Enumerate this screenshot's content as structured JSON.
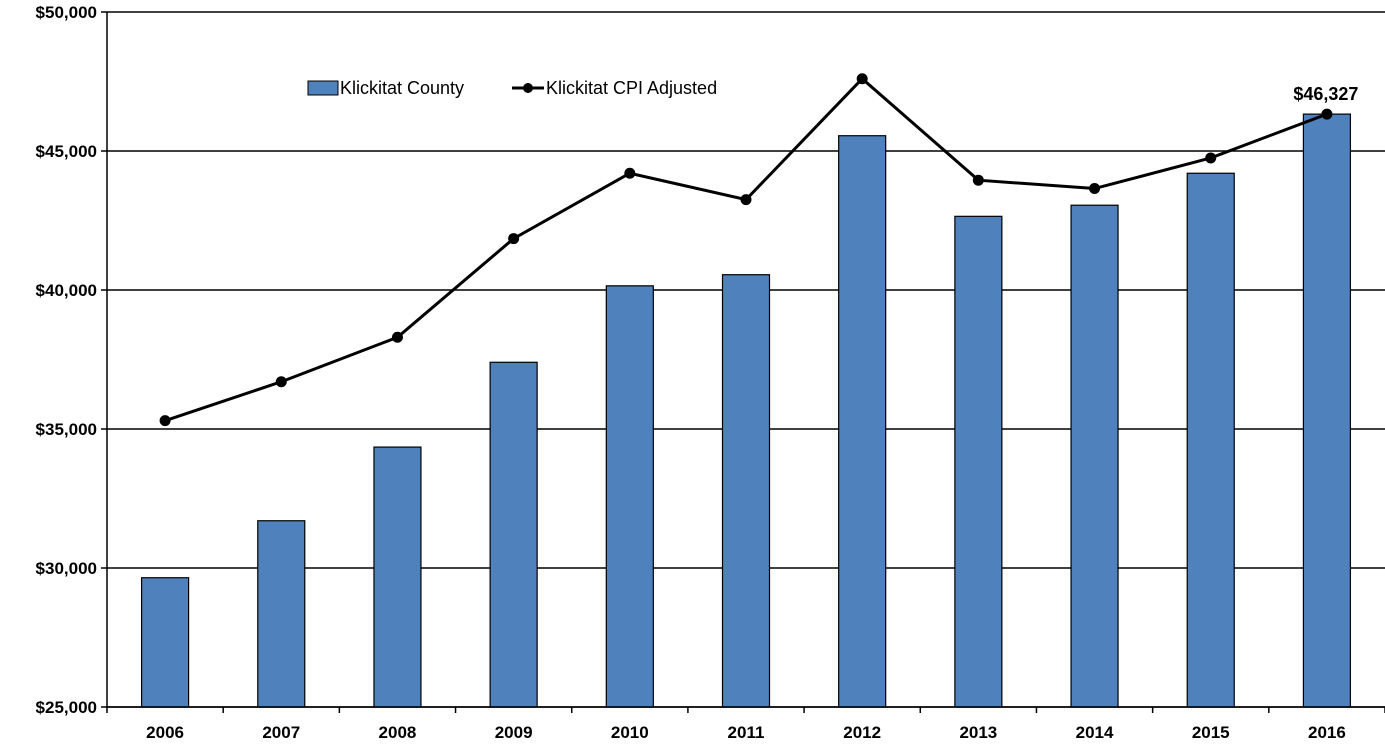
{
  "chart_data": {
    "type": "bar",
    "categories": [
      "2006",
      "2007",
      "2008",
      "2009",
      "2010",
      "2011",
      "2012",
      "2013",
      "2014",
      "2015",
      "2016"
    ],
    "series": [
      {
        "name": "Klickitat County",
        "type": "bar",
        "values": [
          29650,
          31700,
          34350,
          37400,
          40150,
          40550,
          45550,
          42650,
          43050,
          44200,
          46327
        ]
      },
      {
        "name": "Klickitat CPI Adjusted",
        "type": "line",
        "values": [
          35300,
          36700,
          38300,
          41850,
          44200,
          43250,
          47600,
          43950,
          43650,
          44750,
          46327
        ]
      }
    ],
    "ylim": [
      25000,
      50000
    ],
    "yticks": [
      25000,
      30000,
      35000,
      40000,
      45000,
      50000
    ],
    "ytick_labels": [
      "$25,000",
      "$30,000",
      "$35,000",
      "$40,000",
      "$45,000",
      "$50,000"
    ],
    "grid": true,
    "legend": "top-left",
    "annotations": [
      {
        "category": "2016",
        "text": "$46,327"
      }
    ],
    "colors": {
      "bar": "#4f81bd",
      "bar_edge": "#000000",
      "line": "#000000"
    }
  }
}
